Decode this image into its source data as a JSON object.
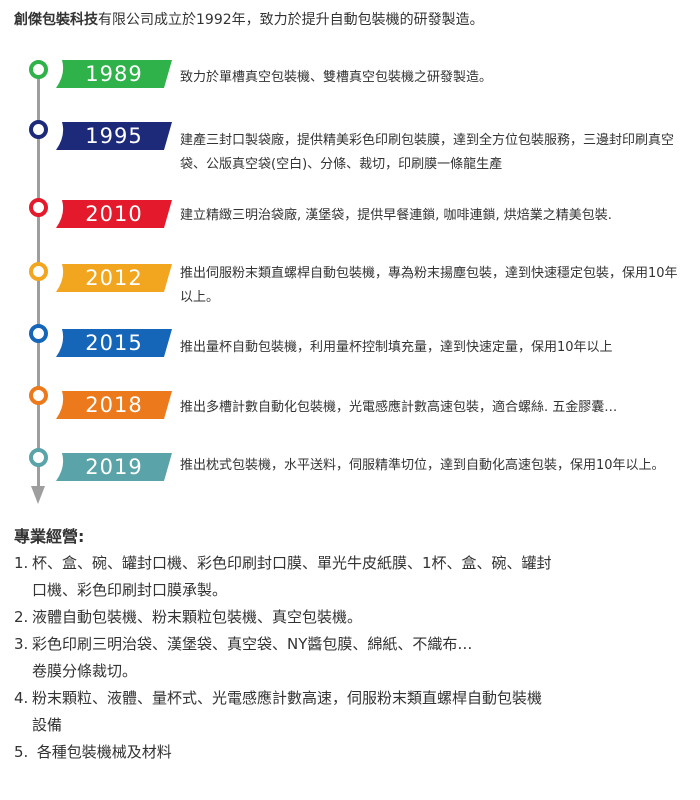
{
  "intro": {
    "company": "創傑包裝科技",
    "text": "有限公司成立於1992年，致力於提升自動包裝機的研發製造。"
  },
  "timeline": [
    {
      "year": "1989",
      "color": "#2fb24a",
      "desc": "致力於單槽真空包裝機、雙槽真空包裝機之研發製造。"
    },
    {
      "year": "1995",
      "color": "#1d2a7a",
      "desc": "建產三封口製袋廠，提供精美彩色印刷包裝膜，達到全方位包裝服務，三邊封印刷真空袋、公版真空袋(空白)、分條、裁切，印刷膜一條龍生產"
    },
    {
      "year": "2010",
      "color": "#e4192b",
      "desc": "建立精緻三明治袋廠, 漢堡袋，提供早餐連鎖, 咖啡連鎖, 烘焙業之精美包裝."
    },
    {
      "year": "2012",
      "color": "#f2a51e",
      "desc": "推出伺服粉末類直螺桿自動包裝機，專為粉末揚塵包裝，達到快速穩定包裝，保用10年以上。"
    },
    {
      "year": "2015",
      "color": "#1565b8",
      "desc": "推出量杯自動包裝機，利用量杯控制填充量，達到快速定量，保用10年以上"
    },
    {
      "year": "2018",
      "color": "#ec7a1c",
      "desc": "推出多槽計數自動化包裝機，光電感應計數高速包裝，適合螺絲. 五金膠囊…"
    },
    {
      "year": "2019",
      "color": "#5aa3a8",
      "desc": "推出枕式包裝機，水平送料，伺服精準切位，達到自動化高速包裝，保用10年以上。"
    }
  ],
  "business": {
    "title": "專業經營:",
    "items": [
      {
        "num": "1.",
        "text": "杯、盒、碗、罐封口機、彩色印刷封口膜、單光牛皮紙膜、1杯、盒、碗、罐封",
        "cont": "口機、彩色印刷封口膜承製。"
      },
      {
        "num": "2.",
        "text": "液體自動包裝機、粉末顆粒包裝機、真空包裝機。",
        "cont": ""
      },
      {
        "num": "3.",
        "text": "彩色印刷三明治袋、漢堡袋、真空袋、NY醬包膜、綿紙、不織布…",
        "cont": "卷膜分條裁切。"
      },
      {
        "num": "4.",
        "text": "粉末顆粒、液體、量杯式、光電感應計數高速，伺服粉末類直螺桿自動包裝機",
        "cont": "設備"
      },
      {
        "num": "5.",
        "text": " 各種包裝機械及材料",
        "cont": ""
      }
    ]
  }
}
